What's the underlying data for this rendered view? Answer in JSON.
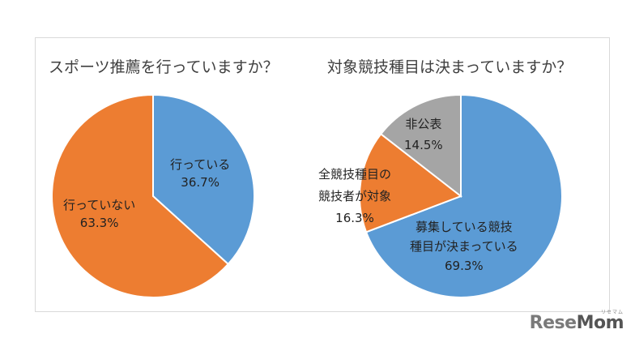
{
  "chart_data": [
    {
      "type": "pie",
      "title": "スポーツ推薦を行っていますか？",
      "slices": [
        {
          "label": "行っている",
          "value": 36.7,
          "value_label": "36.7%",
          "color": "#5b9bd5"
        },
        {
          "label": "行っていない",
          "value": 63.3,
          "value_label": "63.3%",
          "color": "#ed7d31"
        }
      ]
    },
    {
      "type": "pie",
      "title": "対象競技種目は決まっていますか？",
      "slices": [
        {
          "label": "募集している競技種目が決まっている",
          "label_lines": [
            "募集している競技",
            "種目が決まっている"
          ],
          "value": 69.3,
          "value_label": "69.3%",
          "color": "#5b9bd5"
        },
        {
          "label": "全競技種目の競技者が対象",
          "label_lines": [
            "全競技種目の",
            "競技者が対象"
          ],
          "value": 16.3,
          "value_label": "16.3%",
          "color": "#ed7d31"
        },
        {
          "label": "非公表",
          "label_lines": [
            "非公表"
          ],
          "value": 14.5,
          "value_label": "14.5%",
          "color": "#a5a5a5"
        }
      ]
    }
  ],
  "logo": {
    "text_re": "Re",
    "text_se": "se",
    "text_mom": "Mom",
    "tiny": "リセマム"
  }
}
